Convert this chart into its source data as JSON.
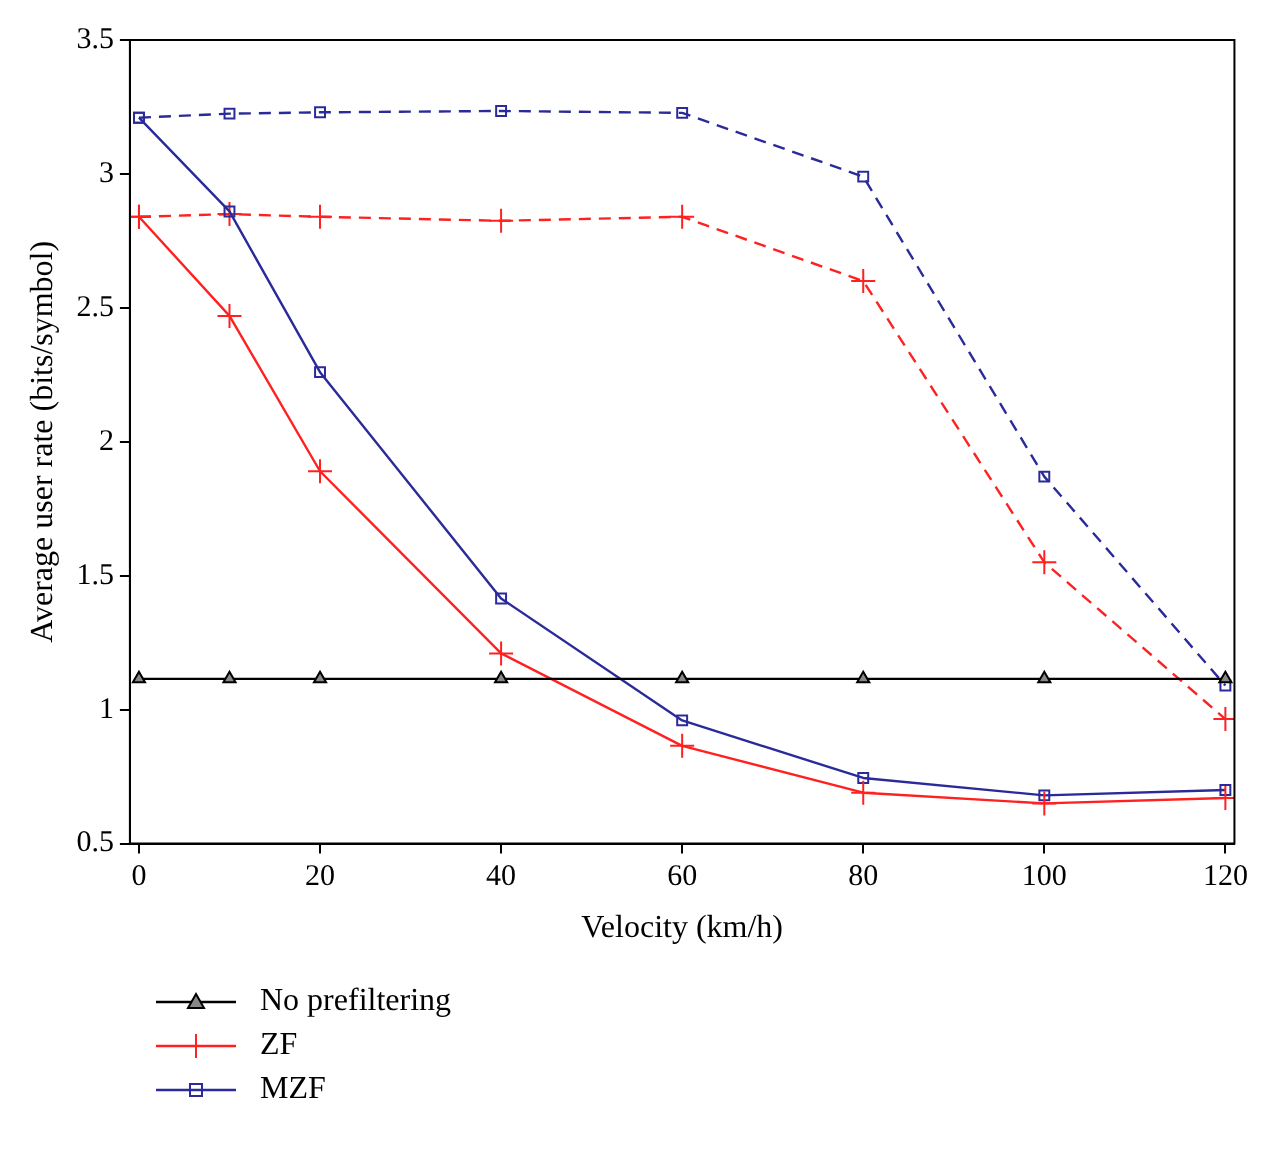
{
  "chart_data": {
    "type": "line",
    "xlabel": "Velocity (km/h)",
    "ylabel": "Average user rate (bits/symbol)",
    "x": [
      0,
      10,
      20,
      40,
      60,
      80,
      100,
      120
    ],
    "xlim": [
      -1,
      121
    ],
    "xticks": [
      0,
      20,
      40,
      60,
      80,
      100,
      120
    ],
    "ylim": [
      0.5,
      3.5
    ],
    "yticks": [
      0.5,
      1,
      1.5,
      2,
      2.5,
      3,
      3.5
    ],
    "grid": false,
    "legend": "bottom",
    "series": [
      {
        "name": "No prefiltering",
        "color": "#000000",
        "marker": "triangle",
        "line_style": "solid",
        "values": [
          1.115,
          1.115,
          1.115,
          1.115,
          1.115,
          1.115,
          1.115,
          1.115
        ]
      },
      {
        "name": "ZF",
        "color": "#ff2020",
        "marker": "cross",
        "line_style": "solid",
        "values": [
          2.84,
          2.47,
          1.89,
          1.21,
          0.865,
          0.69,
          0.65,
          0.67
        ]
      },
      {
        "name": "MZF",
        "color": "#2a2a9a",
        "marker": "square",
        "line_style": "solid",
        "values": [
          3.21,
          2.86,
          2.26,
          1.415,
          0.96,
          0.745,
          0.68,
          0.7
        ]
      },
      {
        "color": "#ff2020",
        "marker": "cross",
        "line_style": "dashed",
        "values": [
          2.84,
          2.85,
          2.84,
          2.825,
          2.84,
          2.6,
          1.55,
          0.965
        ]
      },
      {
        "color": "#2a2a9a",
        "marker": "square",
        "line_style": "dashed",
        "values": [
          3.21,
          3.225,
          3.23,
          3.235,
          3.228,
          2.99,
          1.87,
          1.09
        ]
      }
    ]
  }
}
